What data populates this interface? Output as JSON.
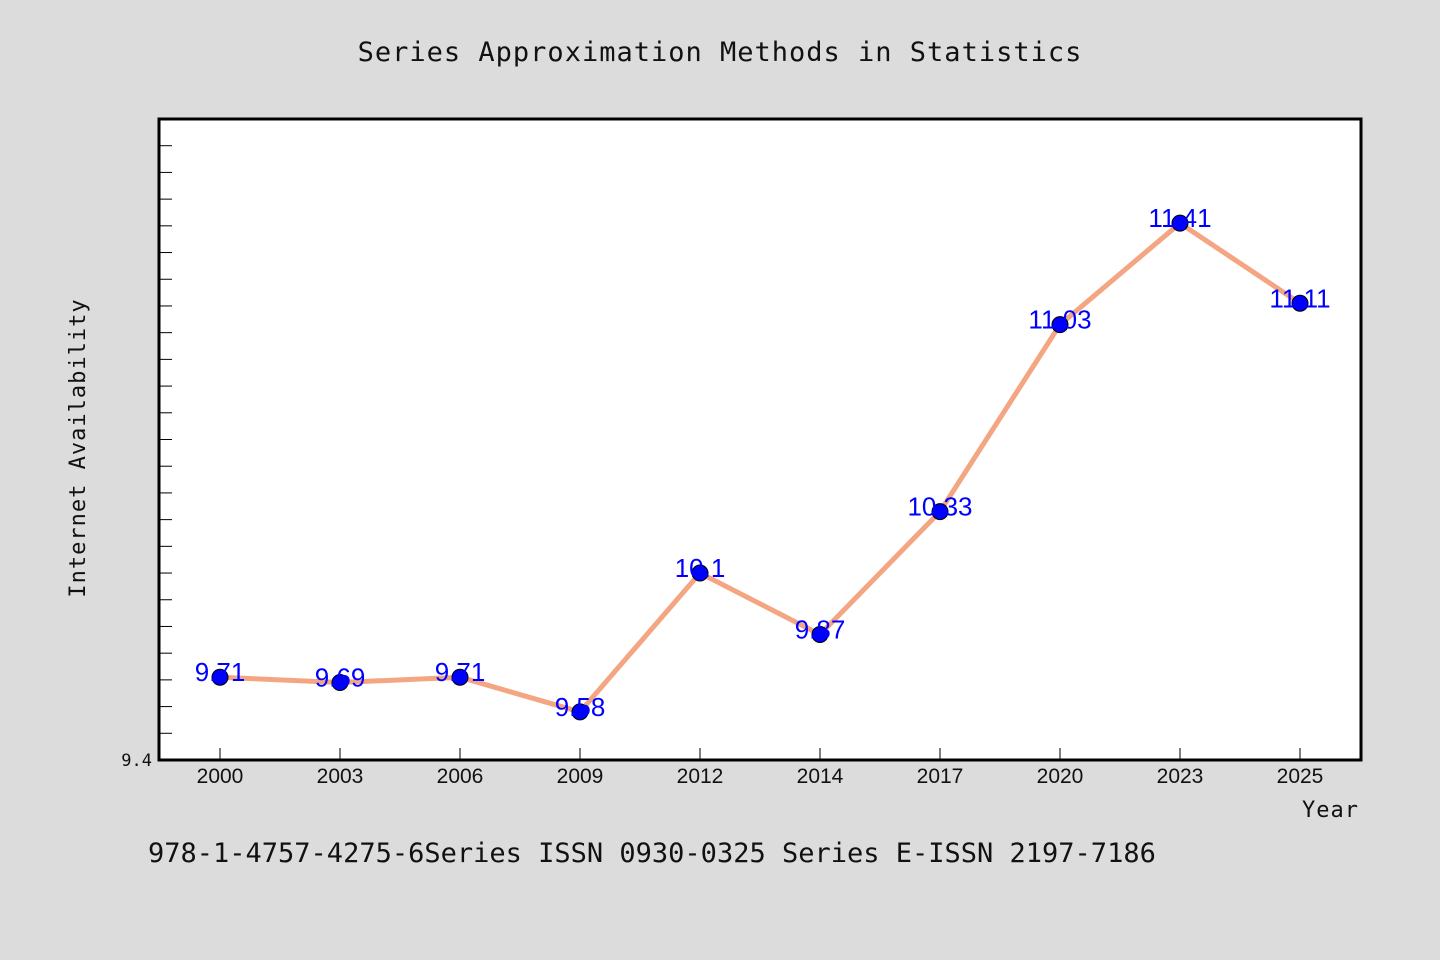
{
  "chart_data": {
    "type": "line",
    "title": "Series Approximation Methods in Statistics",
    "xlabel": "Year",
    "ylabel": "Internet Availability",
    "categories": [
      "2000",
      "2003",
      "2006",
      "2009",
      "2012",
      "2014",
      "2017",
      "2020",
      "2023",
      "2025"
    ],
    "series": [
      {
        "values": [
          9.71,
          9.69,
          9.71,
          9.58,
          10.1,
          9.87,
          10.33,
          11.03,
          11.41,
          11.11
        ]
      }
    ],
    "data_labels": [
      "9.71",
      "9.69",
      "9.71",
      "9.58",
      "10.1",
      "9.87",
      "10.33",
      "11.03",
      "11.41",
      "11.11"
    ],
    "ylim": [
      9.4,
      11.8
    ],
    "ytick_labels": [
      {
        "value": 9.4,
        "text": "9.4"
      }
    ],
    "grid": false,
    "legend": "none",
    "colors": {
      "line": "#f4a582",
      "marker": "#0000ff",
      "label": "#0000ff",
      "background": "#dcdcdc",
      "plot_background": "#ffffff"
    }
  },
  "footer": "978-1-4757-4275-6Series ISSN 0930-0325 Series E-ISSN 2197-7186"
}
